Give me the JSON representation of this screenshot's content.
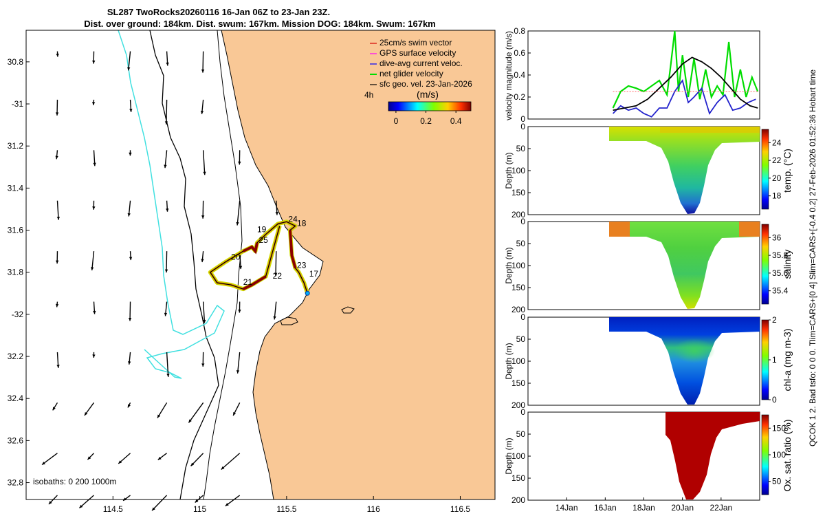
{
  "title": {
    "line1": "SL287 TwoRocks20260116 16-Jan 06Z to 23-Jan 23Z.",
    "line2": "Dist. over ground: 184km. Dist. swum: 167km. Mission DOG: 184km. Swum: 167km"
  },
  "side_caption": "QCOK 1  2. Bad tsfo: 0  0  0. Tlim=CARS+[0 4] Slim=CARS+[-0.4 0.2] 27-Feb-2026 01:52:36 Hobart time",
  "colors": {
    "land": "#f9c896",
    "ocean": "#ffffff",
    "isobath_shallow": "#40e0e0",
    "isobath_deep": "#000000",
    "sfc_velocity": "#000000"
  },
  "chart_data": [
    {
      "type": "map",
      "name": "glider-track-map",
      "xlim": [
        114.0,
        116.7
      ],
      "ylim": [
        -32.88,
        -30.65
      ],
      "xticks": [
        114.5,
        115,
        115.5,
        116,
        116.5
      ],
      "xtick_labels": [
        "114.5",
        "115",
        "115.5",
        "116",
        "116.5"
      ],
      "yticks": [
        -30.8,
        -31,
        -31.2,
        -31.4,
        -31.6,
        -31.8,
        -32,
        -32.2,
        -32.4,
        -32.6,
        -32.8
      ],
      "ytick_labels": [
        "30.8",
        "-31",
        "31.2",
        "31.4",
        "31.6",
        "31.8",
        "-32",
        "32.2",
        "32.4",
        "32.6",
        "32.8"
      ],
      "legend": {
        "position": "top-right",
        "entries": [
          {
            "label": "25cm/s swim vector",
            "color": "#d40000"
          },
          {
            "label": "GPS surface velocity",
            "color": "#ff00ff"
          },
          {
            "label": "dive-avg current veloc.",
            "color": "#0000ff"
          },
          {
            "label": "net glider velocity",
            "color": "#00dd00"
          },
          {
            "label": "sfc geo. vel. 23-Jan-2026",
            "color": "#000000"
          }
        ]
      },
      "colorbar": {
        "label": "(m/s)",
        "corner_label": "4h",
        "ticks": [
          0,
          0.2,
          0.4
        ],
        "tick_labels": [
          "0",
          "0.2",
          "0.4"
        ],
        "range": [
          -0.05,
          0.5
        ]
      },
      "isobath_note": "isobaths: 0    200   1000m",
      "track": {
        "lon": [
          115.62,
          115.6,
          115.57,
          115.55,
          115.53,
          115.52,
          115.55,
          115.5,
          115.45,
          115.38,
          115.33,
          115.32,
          115.3,
          115.25,
          115.15,
          115.06,
          115.1,
          115.18,
          115.25,
          115.3,
          115.38,
          115.46
        ],
        "lat": [
          -31.9,
          -31.85,
          -31.8,
          -31.78,
          -31.72,
          -31.6,
          -31.58,
          -31.56,
          -31.57,
          -31.62,
          -31.66,
          -31.7,
          -31.68,
          -31.7,
          -31.75,
          -31.8,
          -31.85,
          -31.86,
          -31.88,
          -31.86,
          -31.82,
          -31.58
        ]
      },
      "day_labels": [
        {
          "text": "17",
          "lon": 115.63,
          "lat": -31.82
        },
        {
          "text": "18",
          "lon": 115.56,
          "lat": -31.58
        },
        {
          "text": "19",
          "lon": 115.33,
          "lat": -31.61
        },
        {
          "text": "20",
          "lon": 115.18,
          "lat": -31.74
        },
        {
          "text": "21",
          "lon": 115.25,
          "lat": -31.86
        },
        {
          "text": "22",
          "lon": 115.42,
          "lat": -31.83
        },
        {
          "text": "23",
          "lon": 115.56,
          "lat": -31.78
        },
        {
          "text": "24",
          "lon": 115.51,
          "lat": -31.56
        },
        {
          "text": "25",
          "lon": 115.34,
          "lat": -31.66
        }
      ]
    },
    {
      "type": "line",
      "name": "velocity-magnitude",
      "ylabel": "velocity magnitude (m/s)",
      "ylim": [
        0,
        0.8
      ],
      "yticks": [
        0,
        0.2,
        0.4,
        0.6,
        0.8
      ],
      "xlim": [
        12.0,
        24.0
      ],
      "series": [
        {
          "name": "net glider velocity",
          "color": "#00dd00",
          "x": [
            16.4,
            16.8,
            17.2,
            17.6,
            18.0,
            18.4,
            18.8,
            19.2,
            19.4,
            19.6,
            19.8,
            20.0,
            20.3,
            20.6,
            20.9,
            21.2,
            21.5,
            21.8,
            22.1,
            22.4,
            22.7,
            23.0,
            23.3,
            23.6,
            23.9
          ],
          "y": [
            0.1,
            0.25,
            0.3,
            0.28,
            0.25,
            0.3,
            0.35,
            0.22,
            0.5,
            0.8,
            0.25,
            0.58,
            0.2,
            0.55,
            0.18,
            0.45,
            0.2,
            0.3,
            0.22,
            0.7,
            0.2,
            0.45,
            0.2,
            0.38,
            0.25
          ]
        },
        {
          "name": "dive-avg current veloc.",
          "color": "#2222cc",
          "x": [
            16.4,
            16.8,
            17.2,
            17.6,
            18.0,
            18.4,
            18.8,
            19.2,
            19.6,
            20.0,
            20.3,
            20.6,
            21.0,
            21.4,
            21.8,
            22.2,
            22.6,
            23.0,
            23.4,
            23.8
          ],
          "y": [
            0.05,
            0.12,
            0.08,
            0.1,
            0.05,
            0.02,
            0.1,
            0.1,
            0.25,
            0.35,
            0.15,
            0.2,
            0.28,
            0.05,
            0.15,
            0.22,
            0.08,
            0.1,
            0.15,
            0.18
          ]
        },
        {
          "name": "sfc geo. vel. magnitude",
          "color": "#000000",
          "x": [
            16.4,
            17.0,
            17.6,
            18.2,
            18.8,
            19.4,
            20.0,
            20.5,
            21.0,
            21.5,
            22.0,
            22.5,
            23.0,
            23.5,
            23.9
          ],
          "y": [
            0.08,
            0.1,
            0.12,
            0.18,
            0.28,
            0.38,
            0.5,
            0.56,
            0.52,
            0.46,
            0.38,
            0.28,
            0.18,
            0.12,
            0.1
          ]
        },
        {
          "name": "swim speed",
          "color": "#ff6666",
          "x": [
            16.4,
            23.9
          ],
          "y": [
            0.25,
            0.25
          ]
        }
      ]
    },
    {
      "type": "heatmap",
      "name": "temperature-section",
      "ylabel": "Depth (m)",
      "ylim": [
        0,
        200
      ],
      "yticks": [
        0,
        50,
        100,
        150,
        200
      ],
      "colorbar": {
        "label": "temp. (°C)",
        "ticks": [
          18,
          20,
          22,
          24
        ],
        "range": [
          16.5,
          25.5
        ]
      }
    },
    {
      "type": "heatmap",
      "name": "salinity-section",
      "ylabel": "Depth (m)",
      "ylim": [
        0,
        200
      ],
      "yticks": [
        0,
        50,
        100,
        150,
        200
      ],
      "colorbar": {
        "label": "salinity",
        "ticks": [
          35.4,
          35.6,
          35.8,
          36
        ],
        "tick_labels": [
          "35.4",
          "35.6",
          "35.8",
          "36"
        ],
        "range": [
          35.25,
          36.15
        ]
      }
    },
    {
      "type": "heatmap",
      "name": "chla-section",
      "ylabel": "Depth (m)",
      "ylim": [
        0,
        200
      ],
      "yticks": [
        0,
        50,
        100,
        150,
        200
      ],
      "colorbar": {
        "label": "chl-a  (mg m-3)",
        "ticks": [
          0,
          1,
          2
        ],
        "range": [
          0,
          2
        ]
      }
    },
    {
      "type": "heatmap",
      "name": "oxygen-section",
      "ylabel": "Depth (m)",
      "ylim": [
        0,
        200
      ],
      "yticks": [
        0,
        50,
        100,
        150,
        200
      ],
      "xticks": [
        14,
        16,
        18,
        20,
        22
      ],
      "xtick_labels": [
        "14Jan",
        "16Jan",
        "18Jan",
        "20Jan",
        "22Jan"
      ],
      "colorbar": {
        "label": "Ox. sat. ratio (%)",
        "ticks": [
          50,
          100,
          150
        ],
        "range": [
          25,
          175
        ]
      }
    }
  ]
}
